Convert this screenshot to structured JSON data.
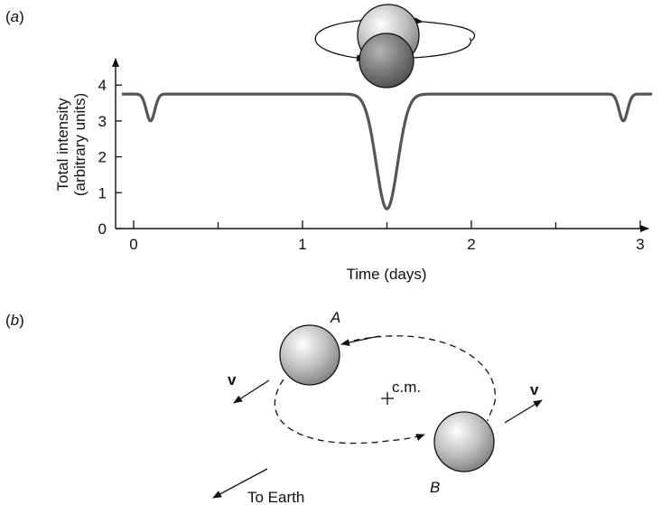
{
  "panel_a": {
    "label_open": "(",
    "label_letter": "a",
    "label_close": ")"
  },
  "panel_b": {
    "label_open": "(",
    "label_letter": "b",
    "label_close": ")",
    "star_a_label": "A",
    "star_b_label": "B",
    "velocity_label_left": "v",
    "velocity_label_right": "v",
    "center_of_mass_label": "c.m.",
    "earth_label": "To Earth"
  },
  "chart_data": {
    "type": "line",
    "title": "",
    "xlabel": "Time (days)",
    "ylabel_line1": "Total intensity",
    "ylabel_line2": "(arbitrary units)",
    "xlim": [
      -0.1,
      3.1
    ],
    "ylim": [
      0,
      4.5
    ],
    "x_ticks": [
      0,
      1,
      2,
      3
    ],
    "y_ticks": [
      0,
      1,
      2,
      3,
      4
    ],
    "x_minor_ticks": [
      0.5,
      1.5,
      2.5
    ],
    "grid": false,
    "baseline": 3.75,
    "eclipses": [
      {
        "center": 0.1,
        "min": 3.0,
        "width": 0.035
      },
      {
        "center": 1.5,
        "min": 0.55,
        "width": 0.09
      },
      {
        "center": 2.9,
        "min": 3.0,
        "width": 0.035
      }
    ],
    "colors": {
      "curve": "#555555",
      "axis": "#111111"
    }
  }
}
